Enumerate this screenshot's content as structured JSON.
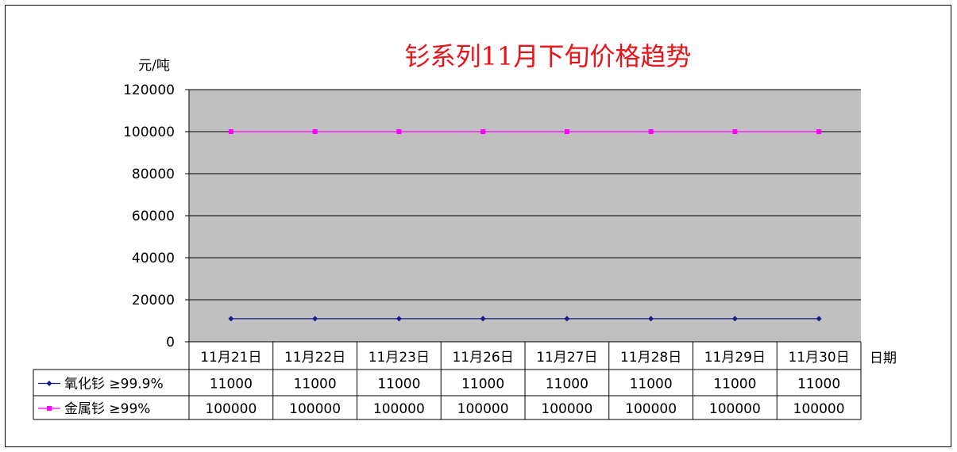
{
  "chart_data": {
    "type": "line",
    "title": "钐系列11月下旬价格趋势",
    "ylabel": "元/吨",
    "xlabel": "日期",
    "ylim": [
      0,
      120000
    ],
    "yticks": [
      "120000",
      "100000",
      "80000",
      "60000",
      "40000",
      "20000",
      "0"
    ],
    "categories": [
      "11月21日",
      "11月22日",
      "11月23日",
      "11月26日",
      "11月27日",
      "11月28日",
      "11月29日",
      "11月30日"
    ],
    "series": [
      {
        "name": "氧化钐 ≥99.9%",
        "color": "#1a1a8c",
        "marker": "diamond",
        "values": [
          11000,
          11000,
          11000,
          11000,
          11000,
          11000,
          11000,
          11000
        ],
        "table_values": [
          "11000",
          "11000",
          "11000",
          "11000",
          "11000",
          "11000",
          "11000",
          "11000"
        ]
      },
      {
        "name": "金属钐 ≥99%",
        "color": "#ff00ff",
        "marker": "square",
        "values": [
          100000,
          100000,
          100000,
          100000,
          100000,
          100000,
          100000,
          100000
        ],
        "table_values": [
          "100000",
          "100000",
          "100000",
          "100000",
          "100000",
          "100000",
          "100000",
          "100000"
        ]
      }
    ],
    "grid": true,
    "plot_background": "#c0c0c0",
    "legend": "data-table"
  }
}
